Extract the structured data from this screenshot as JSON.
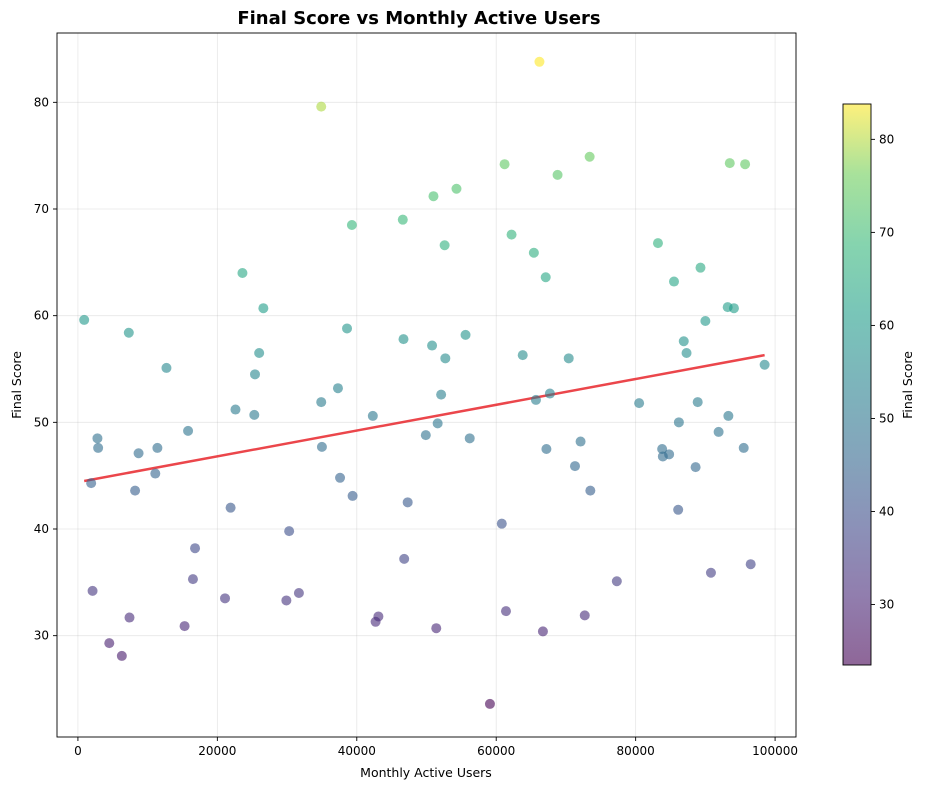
{
  "chart_data": {
    "type": "scatter",
    "title": "Final Score vs Monthly Active Users",
    "xlabel": "Monthly Active Users",
    "ylabel": "Final Score",
    "xlim": [
      -3000,
      103000
    ],
    "ylim": [
      20.5,
      86.5
    ],
    "xticks": [
      0,
      20000,
      40000,
      60000,
      80000,
      100000
    ],
    "yticks": [
      30,
      40,
      50,
      60,
      70,
      80
    ],
    "grid": true,
    "colormap": "viridis",
    "point_alpha": 0.6,
    "colorbar": {
      "label": "Final Score",
      "range": [
        23.5,
        83.8
      ],
      "ticks": [
        30,
        40,
        50,
        60,
        70,
        80
      ]
    },
    "trendline": {
      "color": "#e8262b",
      "x": [
        900,
        98500
      ],
      "y": [
        44.5,
        56.3
      ]
    },
    "points": [
      {
        "x": 900,
        "y": 59.6
      },
      {
        "x": 1900,
        "y": 44.3
      },
      {
        "x": 2100,
        "y": 34.2
      },
      {
        "x": 2800,
        "y": 48.5
      },
      {
        "x": 2900,
        "y": 47.6
      },
      {
        "x": 4500,
        "y": 29.3
      },
      {
        "x": 6300,
        "y": 28.1
      },
      {
        "x": 7300,
        "y": 58.4
      },
      {
        "x": 7400,
        "y": 31.7
      },
      {
        "x": 8200,
        "y": 43.6
      },
      {
        "x": 8700,
        "y": 47.1
      },
      {
        "x": 11100,
        "y": 45.2
      },
      {
        "x": 11400,
        "y": 47.6
      },
      {
        "x": 12700,
        "y": 55.1
      },
      {
        "x": 15300,
        "y": 30.9
      },
      {
        "x": 15800,
        "y": 49.2
      },
      {
        "x": 16500,
        "y": 35.3
      },
      {
        "x": 16800,
        "y": 38.2
      },
      {
        "x": 21100,
        "y": 33.5
      },
      {
        "x": 21900,
        "y": 42.0
      },
      {
        "x": 22600,
        "y": 51.2
      },
      {
        "x": 23600,
        "y": 64.0
      },
      {
        "x": 25300,
        "y": 50.7
      },
      {
        "x": 25400,
        "y": 54.5
      },
      {
        "x": 26000,
        "y": 56.5
      },
      {
        "x": 26600,
        "y": 60.7
      },
      {
        "x": 29900,
        "y": 33.3
      },
      {
        "x": 30300,
        "y": 39.8
      },
      {
        "x": 31700,
        "y": 34.0
      },
      {
        "x": 34900,
        "y": 79.6
      },
      {
        "x": 34900,
        "y": 51.9
      },
      {
        "x": 35000,
        "y": 47.7
      },
      {
        "x": 37300,
        "y": 53.2
      },
      {
        "x": 37600,
        "y": 44.8
      },
      {
        "x": 38600,
        "y": 58.8
      },
      {
        "x": 39300,
        "y": 68.5
      },
      {
        "x": 39400,
        "y": 43.1
      },
      {
        "x": 42300,
        "y": 50.6
      },
      {
        "x": 42700,
        "y": 31.3
      },
      {
        "x": 43100,
        "y": 31.8
      },
      {
        "x": 46600,
        "y": 69.0
      },
      {
        "x": 46700,
        "y": 57.8
      },
      {
        "x": 46800,
        "y": 37.2
      },
      {
        "x": 47300,
        "y": 42.5
      },
      {
        "x": 49900,
        "y": 48.8
      },
      {
        "x": 50800,
        "y": 57.2
      },
      {
        "x": 51000,
        "y": 71.2
      },
      {
        "x": 51400,
        "y": 30.7
      },
      {
        "x": 51600,
        "y": 49.9
      },
      {
        "x": 52100,
        "y": 52.6
      },
      {
        "x": 52600,
        "y": 66.6
      },
      {
        "x": 52700,
        "y": 56.0
      },
      {
        "x": 54300,
        "y": 71.9
      },
      {
        "x": 55600,
        "y": 58.2
      },
      {
        "x": 56200,
        "y": 48.5
      },
      {
        "x": 59100,
        "y": 23.6
      },
      {
        "x": 60800,
        "y": 40.5
      },
      {
        "x": 61200,
        "y": 74.2
      },
      {
        "x": 61400,
        "y": 32.3
      },
      {
        "x": 62200,
        "y": 67.6
      },
      {
        "x": 63800,
        "y": 56.3
      },
      {
        "x": 65400,
        "y": 65.9
      },
      {
        "x": 65700,
        "y": 52.1
      },
      {
        "x": 66200,
        "y": 83.8
      },
      {
        "x": 66700,
        "y": 30.4
      },
      {
        "x": 67100,
        "y": 63.6
      },
      {
        "x": 67200,
        "y": 47.5
      },
      {
        "x": 67700,
        "y": 52.7
      },
      {
        "x": 68800,
        "y": 73.2
      },
      {
        "x": 70400,
        "y": 56.0
      },
      {
        "x": 71300,
        "y": 45.9
      },
      {
        "x": 72100,
        "y": 48.2
      },
      {
        "x": 72700,
        "y": 31.9
      },
      {
        "x": 73400,
        "y": 74.9
      },
      {
        "x": 73500,
        "y": 43.6
      },
      {
        "x": 77300,
        "y": 35.1
      },
      {
        "x": 80500,
        "y": 51.8
      },
      {
        "x": 83200,
        "y": 66.8
      },
      {
        "x": 83800,
        "y": 47.5
      },
      {
        "x": 83900,
        "y": 46.8
      },
      {
        "x": 84800,
        "y": 47.0
      },
      {
        "x": 85500,
        "y": 63.2
      },
      {
        "x": 86100,
        "y": 41.8
      },
      {
        "x": 86200,
        "y": 50.0
      },
      {
        "x": 86900,
        "y": 57.6
      },
      {
        "x": 87300,
        "y": 56.5
      },
      {
        "x": 88600,
        "y": 45.8
      },
      {
        "x": 88900,
        "y": 51.9
      },
      {
        "x": 89300,
        "y": 64.5
      },
      {
        "x": 90000,
        "y": 59.5
      },
      {
        "x": 90800,
        "y": 35.9
      },
      {
        "x": 91900,
        "y": 49.1
      },
      {
        "x": 93200,
        "y": 60.8
      },
      {
        "x": 93300,
        "y": 50.6
      },
      {
        "x": 93500,
        "y": 74.3
      },
      {
        "x": 94100,
        "y": 60.7
      },
      {
        "x": 95500,
        "y": 47.6
      },
      {
        "x": 95700,
        "y": 74.2
      },
      {
        "x": 96500,
        "y": 36.7
      },
      {
        "x": 98500,
        "y": 55.4
      }
    ]
  }
}
